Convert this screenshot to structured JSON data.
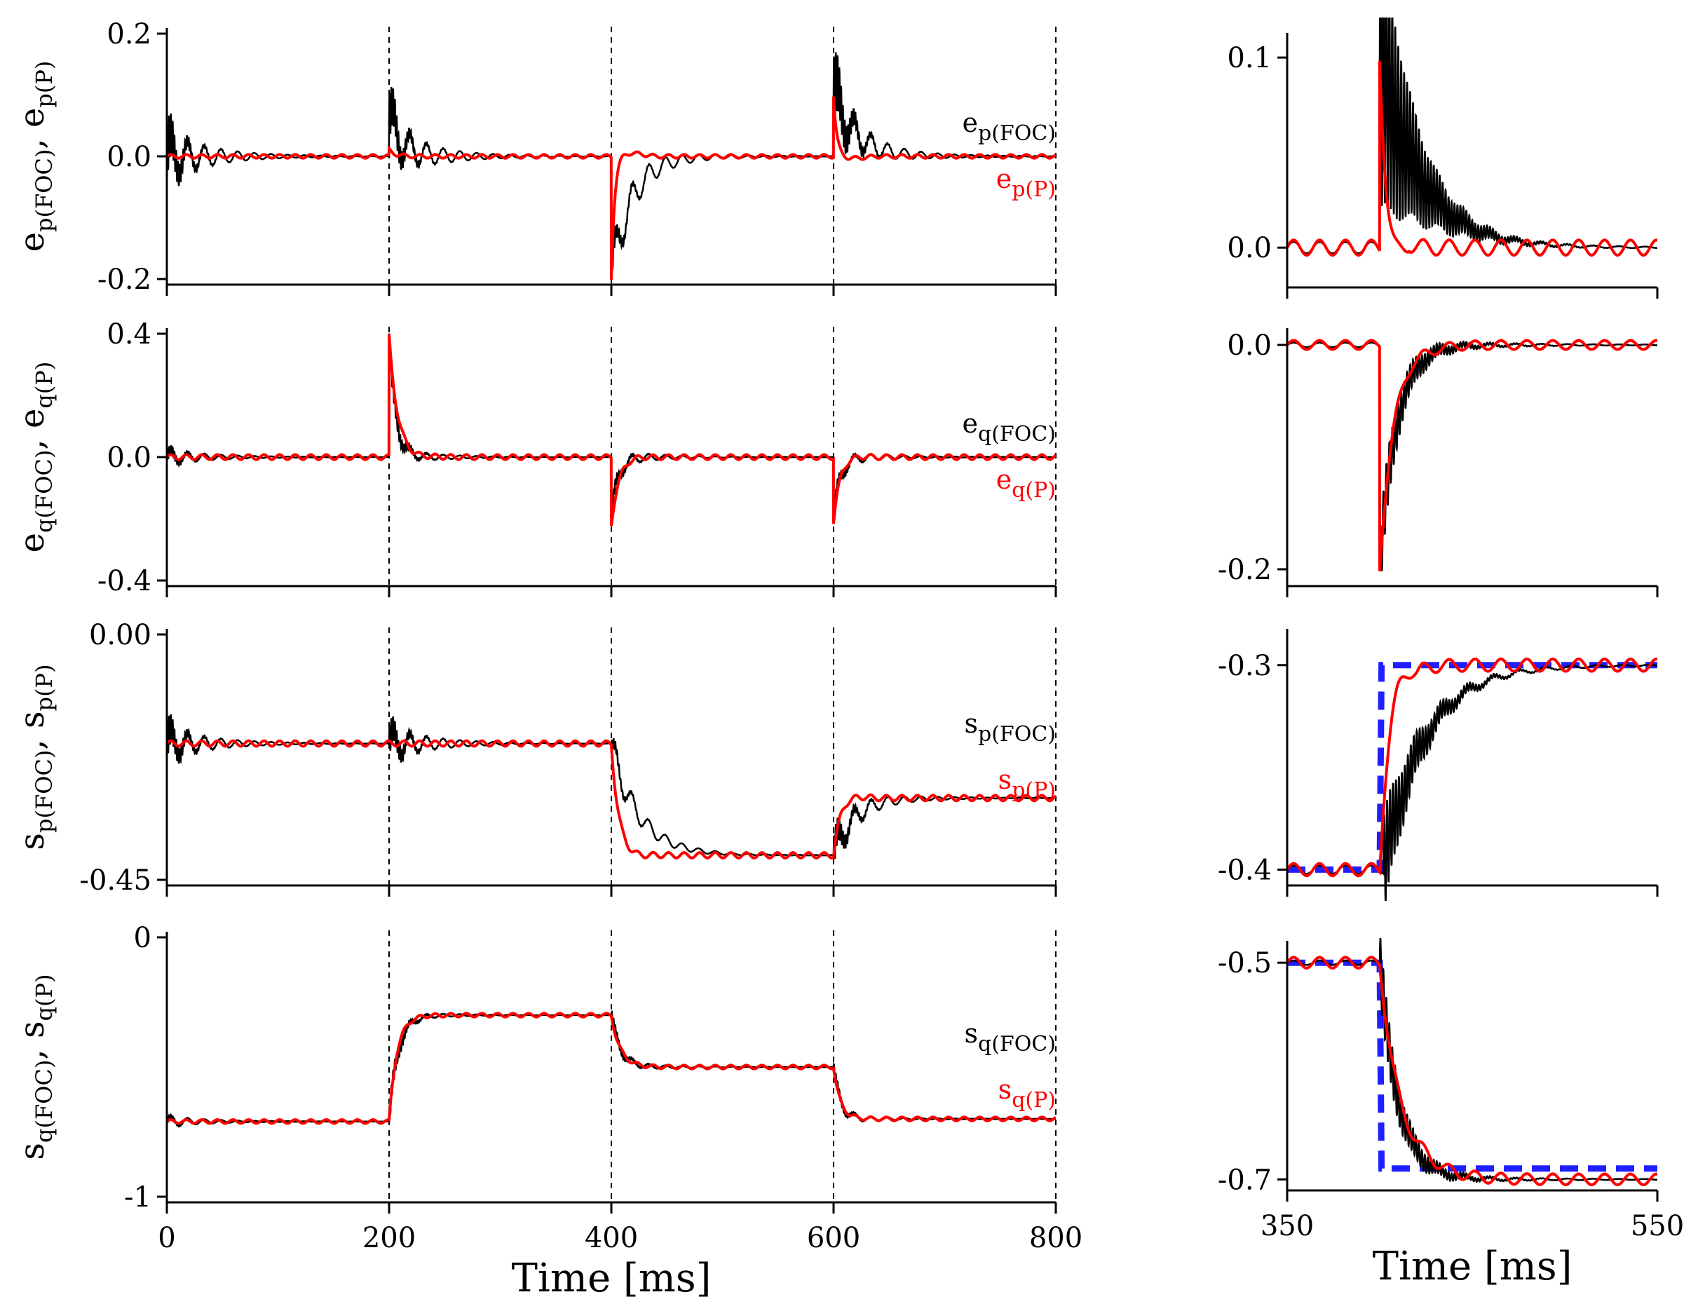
{
  "colors": {
    "foc": "#000000",
    "p": "#ff0000",
    "reference": "#1f1fff",
    "event_line": "#000000"
  },
  "chart_data": [
    {
      "type": "line",
      "panel": "full",
      "ylabel_main": "e",
      "ylabel_sub1": "p(FOC)",
      "ylabel_mid": ", e",
      "ylabel_sub2": "p(P)",
      "xlim": [
        0,
        800
      ],
      "ylim": [
        -0.2,
        0.2
      ],
      "yticks": [
        0.2,
        0.0,
        -0.2
      ],
      "yticklabels": [
        "0.2",
        "0.0",
        "-0.2"
      ],
      "xticks": [
        0,
        200,
        400,
        600,
        800
      ],
      "xticklabels": [
        "",
        "",
        "",
        "",
        ""
      ],
      "events": [
        200,
        400,
        600,
        800
      ],
      "legend": [
        {
          "main": "e",
          "sub": "p(FOC)",
          "color": "#000000"
        },
        {
          "main": "e",
          "sub": "p(P)",
          "color": "#ff0000"
        }
      ],
      "foc": {
        "base": [
          0,
          0,
          0,
          0
        ],
        "jump": [
          0,
          0.06,
          -0.2,
          0.1
        ],
        "tau": [
          30,
          12,
          18,
          20
        ],
        "burst": [
          0.045,
          0.04,
          0.015,
          0.06
        ],
        "osc": 0.04,
        "osc_tau": 40
      },
      "p": {
        "base": [
          0,
          0,
          0,
          0
        ],
        "jump": [
          0,
          0.01,
          -0.2,
          0.1
        ],
        "tau": [
          10,
          6,
          3,
          3
        ],
        "overshoot": [
          0,
          0,
          0.01,
          -0.006
        ],
        "ripple": 0.003
      }
    },
    {
      "type": "line",
      "panel": "full",
      "ylabel_main": "e",
      "ylabel_sub1": "q(FOC)",
      "ylabel_mid": ", e",
      "ylabel_sub2": "q(P)",
      "xlim": [
        0,
        800
      ],
      "ylim": [
        -0.4,
        0.4
      ],
      "yticks": [
        0.4,
        0.0,
        -0.4
      ],
      "yticklabels": [
        "0.4",
        "0.0",
        "-0.4"
      ],
      "xticks": [
        0,
        200,
        400,
        600,
        800
      ],
      "xticklabels": [
        "",
        "",
        "",
        "",
        ""
      ],
      "events": [
        200,
        400,
        600,
        800
      ],
      "legend": [
        {
          "main": "e",
          "sub": "q(FOC)",
          "color": "#000000"
        },
        {
          "main": "e",
          "sub": "q(P)",
          "color": "#ff0000"
        }
      ],
      "foc": {
        "base": [
          0,
          0,
          0,
          0
        ],
        "jump": [
          0,
          0.38,
          -0.2,
          -0.2
        ],
        "tau": [
          30,
          6,
          6,
          6
        ],
        "burst": [
          0.02,
          0.04,
          0.02,
          0.02
        ],
        "osc": 0.025,
        "osc_tau": 40
      },
      "p": {
        "base": [
          0,
          0,
          0,
          0
        ],
        "jump": [
          0,
          0.39,
          -0.22,
          -0.21
        ],
        "tau": [
          10,
          8,
          7,
          6
        ],
        "overshoot": [
          0,
          -0.015,
          0.01,
          0.01
        ],
        "ripple": 0.008
      }
    },
    {
      "type": "line",
      "panel": "full",
      "ylabel_main": "s",
      "ylabel_sub1": "p(FOC)",
      "ylabel_mid": ", s",
      "ylabel_sub2": "p(P)",
      "xlim": [
        0,
        800
      ],
      "ylim": [
        -0.45,
        0.0
      ],
      "yticks": [
        0.0,
        -0.45
      ],
      "yticklabels": [
        "0.00",
        "-0.45"
      ],
      "xticks": [
        0,
        200,
        400,
        600,
        800
      ],
      "xticklabels": [
        "",
        "",
        "",
        "",
        ""
      ],
      "events": [
        200,
        400,
        600,
        800
      ],
      "legend": [
        {
          "main": "s",
          "sub": "p(FOC)",
          "color": "#000000"
        },
        {
          "main": "s",
          "sub": "p(P)",
          "color": "#ff0000"
        }
      ],
      "foc": {
        "base": [
          -0.2,
          -0.2,
          -0.405,
          -0.3
        ],
        "jump": [
          0,
          0,
          0.2,
          -0.105
        ],
        "tau": [
          30,
          12,
          25,
          18
        ],
        "burst": [
          0.035,
          0.03,
          0.01,
          0.03
        ],
        "osc": 0.03,
        "osc_tau": 40
      },
      "p": {
        "base": [
          -0.2,
          -0.2,
          -0.405,
          -0.3
        ],
        "jump": [
          0,
          0,
          0.205,
          -0.105
        ],
        "tau": [
          10,
          6,
          7,
          6
        ],
        "overshoot": [
          0,
          0,
          -0.01,
          0.008
        ],
        "ripple": 0.005
      }
    },
    {
      "type": "line",
      "panel": "full",
      "ylabel_main": "s",
      "ylabel_sub1": "q(FOC)",
      "ylabel_mid": ", s",
      "ylabel_sub2": "q(P)",
      "xlim": [
        0,
        800
      ],
      "ylim": [
        -1,
        0
      ],
      "yticks": [
        0,
        -1
      ],
      "yticklabels": [
        "0",
        "-1"
      ],
      "xticks": [
        0,
        200,
        400,
        600,
        800
      ],
      "xticklabels": [
        "0",
        "200",
        "400",
        "600",
        "800"
      ],
      "xlabel": "Time [ms]",
      "events": [
        200,
        400,
        600,
        800
      ],
      "legend": [
        {
          "main": "s",
          "sub": "q(FOC)",
          "color": "#000000"
        },
        {
          "main": "s",
          "sub": "q(P)",
          "color": "#ff0000"
        }
      ],
      "foc": {
        "base": [
          -0.71,
          -0.3,
          -0.5,
          -0.7
        ],
        "jump": [
          0,
          -0.41,
          0.2,
          0.2
        ],
        "tau": [
          30,
          8,
          8,
          6
        ],
        "burst": [
          0.01,
          0.04,
          0.02,
          0.02
        ],
        "osc": 0.02,
        "osc_tau": 40
      },
      "p": {
        "base": [
          -0.71,
          -0.3,
          -0.5,
          -0.7
        ],
        "jump": [
          0,
          -0.41,
          0.2,
          0.2
        ],
        "tau": [
          10,
          7,
          8,
          6
        ],
        "overshoot": [
          0,
          0,
          0,
          0
        ],
        "ripple": 0.007
      }
    },
    {
      "type": "line",
      "panel": "zoom",
      "xlim": [
        350,
        550
      ],
      "ylim": [
        -0.018,
        0.11
      ],
      "yticks": [
        0.1,
        0.0
      ],
      "yticklabels": [
        "0.1",
        "0.0"
      ],
      "xticks": [
        350,
        550
      ],
      "xticklabels": [
        "",
        ""
      ],
      "step_at": 400,
      "pre": 0,
      "post": 0,
      "jump": 0.1,
      "foc": {
        "tau": 22,
        "burst": 0.08,
        "ripple": 0.003
      },
      "p": {
        "tau": 4,
        "overshoot": -0.015,
        "ov_tau": 8,
        "ripple": 0.004
      }
    },
    {
      "type": "line",
      "panel": "zoom",
      "xlim": [
        350,
        550
      ],
      "ylim": [
        -0.21,
        0.01
      ],
      "yticks": [
        0.0,
        -0.2
      ],
      "yticklabels": [
        "0.0",
        "-0.2"
      ],
      "xticks": [
        350,
        550
      ],
      "xticklabels": [
        "",
        ""
      ],
      "step_at": 400,
      "pre": 0,
      "post": 0,
      "jump": -0.2,
      "foc": {
        "tau": 9,
        "burst": 0.03,
        "ripple": 0.002
      },
      "p": {
        "tau": 8,
        "overshoot": 0.006,
        "ov_tau": 14,
        "ripple": 0.004
      }
    },
    {
      "type": "line",
      "panel": "zoom",
      "xlim": [
        350,
        550
      ],
      "ylim": [
        -0.405,
        -0.285
      ],
      "yticks": [
        -0.3,
        -0.4
      ],
      "yticklabels": [
        "-0.3",
        "-0.4"
      ],
      "xticks": [
        350,
        550
      ],
      "xticklabels": [
        "",
        ""
      ],
      "step_at": 400,
      "pre": -0.4,
      "post": -0.3,
      "jump": 0,
      "reference": {
        "x": [
          350,
          400,
          401,
          550
        ],
        "y": [
          -0.4,
          -0.4,
          -0.3,
          -0.3
        ]
      },
      "foc": {
        "tau": 22,
        "burst": 0.025,
        "ripple": 0.002,
        "delay": 2
      },
      "p": {
        "tau": 6,
        "overshoot": 0.01,
        "ov_tau": 10,
        "ripple": 0.003
      }
    },
    {
      "type": "line",
      "panel": "zoom",
      "xlim": [
        350,
        550
      ],
      "ylim": [
        -0.705,
        -0.485
      ],
      "yticks": [
        -0.5,
        -0.7
      ],
      "yticklabels": [
        "-0.5",
        "-0.7"
      ],
      "xticks": [
        350,
        550
      ],
      "xticklabels": [
        "350",
        "550"
      ],
      "xlabel": "Time [ms]",
      "step_at": 400,
      "pre": -0.5,
      "post": -0.7,
      "jump": 0,
      "reference": {
        "x": [
          350,
          400,
          401,
          550
        ],
        "y": [
          -0.5,
          -0.5,
          -0.69,
          -0.69
        ]
      },
      "foc": {
        "tau": 10,
        "burst": 0.03,
        "ripple": 0.002,
        "delay": 0
      },
      "p": {
        "tau": 12,
        "overshoot": -0.008,
        "ov_tau": 12,
        "ripple": 0.005
      }
    }
  ]
}
